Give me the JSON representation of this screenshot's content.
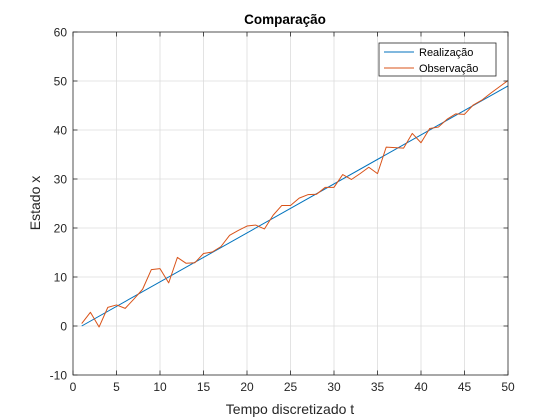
{
  "chart_data": {
    "type": "line",
    "title": "Comparação",
    "xlabel": "Tempo discretizado t",
    "ylabel": "Estado x",
    "xlim": [
      0,
      50
    ],
    "ylim": [
      -10,
      60
    ],
    "xticks": [
      0,
      5,
      10,
      15,
      20,
      25,
      30,
      35,
      40,
      45,
      50
    ],
    "yticks": [
      -10,
      0,
      10,
      20,
      30,
      40,
      50,
      60
    ],
    "grid": true,
    "legend_position": "top-right",
    "series": [
      {
        "name": "Realização",
        "color": "#0072BD",
        "x": [
          1,
          50
        ],
        "y": [
          0,
          49
        ]
      },
      {
        "name": "Observação",
        "color": "#D95319",
        "x": [
          1,
          2,
          3,
          4,
          5,
          6,
          7,
          8,
          9,
          10,
          11,
          12,
          13,
          14,
          15,
          16,
          17,
          18,
          19,
          20,
          21,
          22,
          23,
          24,
          25,
          26,
          27,
          28,
          29,
          30,
          31,
          32,
          33,
          34,
          35,
          36,
          37,
          38,
          39,
          40,
          41,
          42,
          43,
          44,
          45,
          46,
          47,
          48,
          49,
          50
        ],
        "y": [
          0.5,
          2.8,
          -0.2,
          3.8,
          4.3,
          3.6,
          5.5,
          7.5,
          11.5,
          11.7,
          8.8,
          14,
          12.8,
          12.9,
          14.8,
          15.1,
          16.2,
          18.5,
          19.5,
          20.4,
          20.6,
          19.8,
          22.6,
          24.6,
          24.6,
          26.1,
          26.8,
          26.9,
          28.3,
          28.3,
          30.9,
          29.9,
          31.1,
          32.4,
          31.1,
          36.5,
          36.4,
          36.3,
          39.3,
          37.4,
          40.3,
          40.6,
          42.2,
          43.3,
          43.2,
          45.1,
          46.1,
          47.5,
          48.8,
          50.1
        ]
      }
    ]
  }
}
